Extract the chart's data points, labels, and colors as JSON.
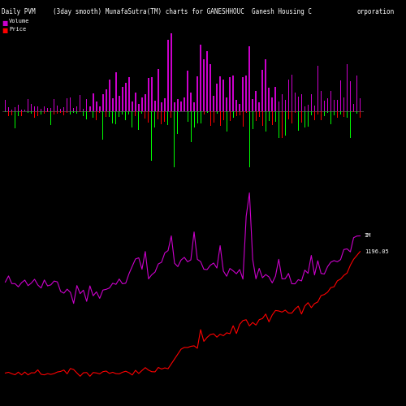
{
  "title_left": "Daily PVM",
  "title_center": "(3day smooth) MunafaSutra(TM) charts for GANESHHOUC",
  "title_center2": "Ganesh Housing C",
  "title_right": "orporation",
  "legend_volume_color": "#cc00cc",
  "legend_price_color": "#ff0000",
  "background_color": "#000000",
  "n_bars": 110,
  "volume_color_pos": "#cc00cc",
  "volume_color_neg": "#00ff00",
  "line_im_color": "#cc00cc",
  "line_price_color": "#ff0000",
  "label_IM": "IM",
  "label_price": "1196.05"
}
